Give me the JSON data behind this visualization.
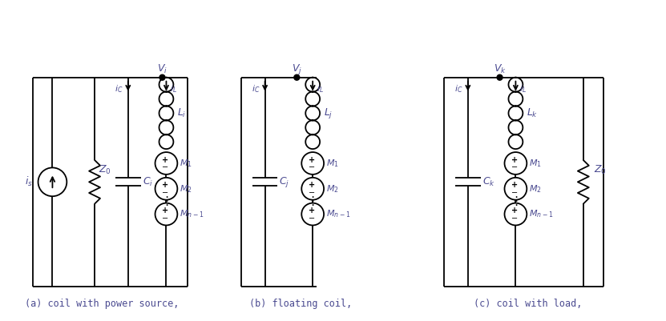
{
  "bg_color": "#ffffff",
  "line_color": "#000000",
  "text_color": "#4a4a90",
  "captions": [
    "(a) coil with power source,",
    "(b) floating coil,",
    "(c) coil with load,"
  ]
}
